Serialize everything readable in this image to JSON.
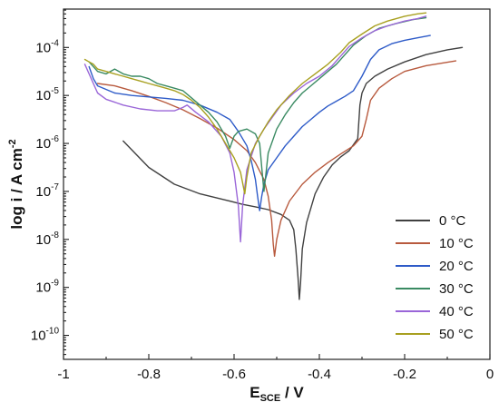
{
  "chart_data": {
    "type": "line",
    "xlabel": {
      "main": "E",
      "sub": "SCE",
      "rest": " / V"
    },
    "ylabel": {
      "main": "log i / A cm",
      "sup": "-2"
    },
    "xlim": [
      -1,
      0
    ],
    "ylim_log10": [
      -10.5,
      -3.2
    ],
    "y_scale": "log",
    "grid": false,
    "legend_position": "lower-right",
    "x_ticks": [
      {
        "value": -1,
        "label": "-1"
      },
      {
        "value": -0.8,
        "label": "-0.8"
      },
      {
        "value": -0.6,
        "label": "-0.6"
      },
      {
        "value": -0.4,
        "label": "-0.4"
      },
      {
        "value": -0.2,
        "label": "-0.2"
      },
      {
        "value": 0,
        "label": "0"
      }
    ],
    "y_ticks": [
      {
        "exp": -10,
        "base": "10",
        "sup": "-10"
      },
      {
        "exp": -9,
        "base": "10",
        "sup": "-9"
      },
      {
        "exp": -8,
        "base": "10",
        "sup": "-8"
      },
      {
        "exp": -7,
        "base": "10",
        "sup": "-7"
      },
      {
        "exp": -6,
        "base": "10",
        "sup": "-6"
      },
      {
        "exp": -5,
        "base": "10",
        "sup": "-5"
      },
      {
        "exp": -4,
        "base": "10",
        "sup": "-4"
      }
    ],
    "series": [
      {
        "name": "0 °C",
        "label_value": "0",
        "label_unit": "°C",
        "color": "#404040",
        "points": [
          [
            -0.86,
            -5.95
          ],
          [
            -0.8,
            -6.5
          ],
          [
            -0.74,
            -6.85
          ],
          [
            -0.68,
            -7.05
          ],
          [
            -0.62,
            -7.18
          ],
          [
            -0.58,
            -7.27
          ],
          [
            -0.55,
            -7.32
          ],
          [
            -0.52,
            -7.38
          ],
          [
            -0.49,
            -7.48
          ],
          [
            -0.47,
            -7.6
          ],
          [
            -0.46,
            -7.8
          ],
          [
            -0.455,
            -8.2
          ],
          [
            -0.45,
            -8.8
          ],
          [
            -0.447,
            -9.25
          ],
          [
            -0.444,
            -8.9
          ],
          [
            -0.44,
            -8.2
          ],
          [
            -0.43,
            -7.65
          ],
          [
            -0.41,
            -7.05
          ],
          [
            -0.39,
            -6.7
          ],
          [
            -0.37,
            -6.45
          ],
          [
            -0.35,
            -6.28
          ],
          [
            -0.33,
            -6.15
          ],
          [
            -0.31,
            -5.9
          ],
          [
            -0.305,
            -5.2
          ],
          [
            -0.3,
            -4.95
          ],
          [
            -0.29,
            -4.75
          ],
          [
            -0.27,
            -4.6
          ],
          [
            -0.24,
            -4.45
          ],
          [
            -0.2,
            -4.3
          ],
          [
            -0.15,
            -4.15
          ],
          [
            -0.1,
            -4.05
          ],
          [
            -0.065,
            -4.0
          ]
        ]
      },
      {
        "name": "10 °C",
        "label_value": "10",
        "label_unit": "°C",
        "color": "#b85a3e",
        "points": [
          [
            -0.92,
            -4.75
          ],
          [
            -0.88,
            -4.8
          ],
          [
            -0.84,
            -4.9
          ],
          [
            -0.8,
            -5.02
          ],
          [
            -0.76,
            -5.15
          ],
          [
            -0.72,
            -5.3
          ],
          [
            -0.68,
            -5.48
          ],
          [
            -0.64,
            -5.68
          ],
          [
            -0.6,
            -5.92
          ],
          [
            -0.57,
            -6.15
          ],
          [
            -0.55,
            -6.4
          ],
          [
            -0.53,
            -6.75
          ],
          [
            -0.52,
            -7.1
          ],
          [
            -0.512,
            -7.6
          ],
          [
            -0.508,
            -8.1
          ],
          [
            -0.505,
            -8.35
          ],
          [
            -0.5,
            -8.0
          ],
          [
            -0.49,
            -7.6
          ],
          [
            -0.47,
            -7.2
          ],
          [
            -0.44,
            -6.85
          ],
          [
            -0.41,
            -6.6
          ],
          [
            -0.38,
            -6.4
          ],
          [
            -0.35,
            -6.22
          ],
          [
            -0.32,
            -6.05
          ],
          [
            -0.3,
            -5.85
          ],
          [
            -0.29,
            -5.5
          ],
          [
            -0.28,
            -5.1
          ],
          [
            -0.26,
            -4.85
          ],
          [
            -0.23,
            -4.65
          ],
          [
            -0.2,
            -4.5
          ],
          [
            -0.15,
            -4.38
          ],
          [
            -0.08,
            -4.28
          ]
        ]
      },
      {
        "name": "20 °C",
        "label_value": "20",
        "label_unit": "°C",
        "color": "#2e5bc8",
        "points": [
          [
            -0.94,
            -4.4
          ],
          [
            -0.93,
            -4.65
          ],
          [
            -0.92,
            -4.8
          ],
          [
            -0.88,
            -4.95
          ],
          [
            -0.84,
            -5.0
          ],
          [
            -0.8,
            -5.03
          ],
          [
            -0.76,
            -5.06
          ],
          [
            -0.72,
            -5.1
          ],
          [
            -0.68,
            -5.2
          ],
          [
            -0.64,
            -5.35
          ],
          [
            -0.61,
            -5.5
          ],
          [
            -0.59,
            -5.75
          ],
          [
            -0.57,
            -6.05
          ],
          [
            -0.56,
            -6.35
          ],
          [
            -0.55,
            -6.75
          ],
          [
            -0.545,
            -7.1
          ],
          [
            -0.54,
            -7.4
          ],
          [
            -0.535,
            -7.1
          ],
          [
            -0.53,
            -6.85
          ],
          [
            -0.52,
            -6.55
          ],
          [
            -0.5,
            -6.3
          ],
          [
            -0.48,
            -6.05
          ],
          [
            -0.46,
            -5.85
          ],
          [
            -0.44,
            -5.65
          ],
          [
            -0.42,
            -5.5
          ],
          [
            -0.4,
            -5.35
          ],
          [
            -0.38,
            -5.22
          ],
          [
            -0.36,
            -5.12
          ],
          [
            -0.34,
            -5.02
          ],
          [
            -0.32,
            -4.9
          ],
          [
            -0.3,
            -4.6
          ],
          [
            -0.28,
            -4.25
          ],
          [
            -0.26,
            -4.05
          ],
          [
            -0.23,
            -3.92
          ],
          [
            -0.2,
            -3.85
          ],
          [
            -0.17,
            -3.8
          ],
          [
            -0.14,
            -3.75
          ]
        ]
      },
      {
        "name": "30 °C",
        "label_value": "30",
        "label_unit": "°C",
        "color": "#3a8a62",
        "points": [
          [
            -0.94,
            -4.3
          ],
          [
            -0.92,
            -4.5
          ],
          [
            -0.9,
            -4.55
          ],
          [
            -0.88,
            -4.45
          ],
          [
            -0.86,
            -4.55
          ],
          [
            -0.84,
            -4.6
          ],
          [
            -0.82,
            -4.6
          ],
          [
            -0.8,
            -4.65
          ],
          [
            -0.78,
            -4.75
          ],
          [
            -0.76,
            -4.8
          ],
          [
            -0.74,
            -4.85
          ],
          [
            -0.72,
            -4.9
          ],
          [
            -0.7,
            -5.05
          ],
          [
            -0.68,
            -5.2
          ],
          [
            -0.66,
            -5.35
          ],
          [
            -0.64,
            -5.55
          ],
          [
            -0.62,
            -5.85
          ],
          [
            -0.61,
            -6.1
          ],
          [
            -0.6,
            -5.85
          ],
          [
            -0.59,
            -5.75
          ],
          [
            -0.57,
            -5.7
          ],
          [
            -0.55,
            -5.8
          ],
          [
            -0.54,
            -6.0
          ],
          [
            -0.535,
            -6.5
          ],
          [
            -0.53,
            -7.0
          ],
          [
            -0.525,
            -6.6
          ],
          [
            -0.52,
            -6.2
          ],
          [
            -0.5,
            -5.7
          ],
          [
            -0.48,
            -5.4
          ],
          [
            -0.46,
            -5.15
          ],
          [
            -0.44,
            -4.95
          ],
          [
            -0.42,
            -4.8
          ],
          [
            -0.4,
            -4.65
          ],
          [
            -0.38,
            -4.5
          ],
          [
            -0.36,
            -4.35
          ],
          [
            -0.34,
            -4.15
          ],
          [
            -0.32,
            -3.95
          ],
          [
            -0.29,
            -3.75
          ],
          [
            -0.26,
            -3.6
          ],
          [
            -0.22,
            -3.5
          ],
          [
            -0.18,
            -3.42
          ],
          [
            -0.15,
            -3.38
          ]
        ]
      },
      {
        "name": "40 °C",
        "label_value": "40",
        "label_unit": "°C",
        "color": "#9a66d8",
        "points": [
          [
            -0.95,
            -4.35
          ],
          [
            -0.94,
            -4.55
          ],
          [
            -0.93,
            -4.75
          ],
          [
            -0.92,
            -4.95
          ],
          [
            -0.9,
            -5.08
          ],
          [
            -0.86,
            -5.2
          ],
          [
            -0.82,
            -5.28
          ],
          [
            -0.78,
            -5.32
          ],
          [
            -0.74,
            -5.32
          ],
          [
            -0.72,
            -5.25
          ],
          [
            -0.71,
            -5.2
          ],
          [
            -0.69,
            -5.35
          ],
          [
            -0.66,
            -5.55
          ],
          [
            -0.63,
            -5.85
          ],
          [
            -0.61,
            -6.2
          ],
          [
            -0.6,
            -6.6
          ],
          [
            -0.59,
            -7.3
          ],
          [
            -0.585,
            -8.05
          ],
          [
            -0.58,
            -7.3
          ],
          [
            -0.57,
            -6.55
          ],
          [
            -0.55,
            -6.0
          ],
          [
            -0.53,
            -5.7
          ],
          [
            -0.51,
            -5.45
          ],
          [
            -0.49,
            -5.2
          ],
          [
            -0.46,
            -4.95
          ],
          [
            -0.43,
            -4.75
          ],
          [
            -0.4,
            -4.6
          ],
          [
            -0.37,
            -4.38
          ],
          [
            -0.35,
            -4.18
          ],
          [
            -0.33,
            -3.98
          ],
          [
            -0.3,
            -3.8
          ],
          [
            -0.27,
            -3.65
          ],
          [
            -0.24,
            -3.55
          ],
          [
            -0.2,
            -3.45
          ],
          [
            -0.17,
            -3.4
          ],
          [
            -0.15,
            -3.35
          ]
        ]
      },
      {
        "name": "50 °C",
        "label_value": "50",
        "label_unit": "°C",
        "color": "#a8a020",
        "points": [
          [
            -0.95,
            -4.25
          ],
          [
            -0.94,
            -4.3
          ],
          [
            -0.93,
            -4.35
          ],
          [
            -0.92,
            -4.45
          ],
          [
            -0.9,
            -4.5
          ],
          [
            -0.88,
            -4.55
          ],
          [
            -0.86,
            -4.6
          ],
          [
            -0.84,
            -4.65
          ],
          [
            -0.82,
            -4.7
          ],
          [
            -0.8,
            -4.75
          ],
          [
            -0.78,
            -4.8
          ],
          [
            -0.76,
            -4.85
          ],
          [
            -0.74,
            -4.9
          ],
          [
            -0.72,
            -4.98
          ],
          [
            -0.7,
            -5.1
          ],
          [
            -0.68,
            -5.25
          ],
          [
            -0.66,
            -5.45
          ],
          [
            -0.64,
            -5.7
          ],
          [
            -0.62,
            -6.0
          ],
          [
            -0.6,
            -6.3
          ],
          [
            -0.585,
            -6.6
          ],
          [
            -0.575,
            -7.05
          ],
          [
            -0.57,
            -6.7
          ],
          [
            -0.56,
            -6.2
          ],
          [
            -0.54,
            -5.85
          ],
          [
            -0.52,
            -5.55
          ],
          [
            -0.5,
            -5.3
          ],
          [
            -0.47,
            -5.0
          ],
          [
            -0.44,
            -4.75
          ],
          [
            -0.41,
            -4.55
          ],
          [
            -0.38,
            -4.35
          ],
          [
            -0.35,
            -4.1
          ],
          [
            -0.33,
            -3.9
          ],
          [
            -0.3,
            -3.72
          ],
          [
            -0.27,
            -3.55
          ],
          [
            -0.24,
            -3.45
          ],
          [
            -0.2,
            -3.35
          ],
          [
            -0.17,
            -3.3
          ],
          [
            -0.15,
            -3.28
          ]
        ]
      }
    ]
  }
}
